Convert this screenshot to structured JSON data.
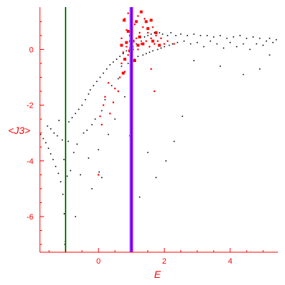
{
  "chart_data": {
    "type": "scatter",
    "title": "",
    "xlabel": "E",
    "ylabel": "<J3>",
    "xlim": [
      -1.78,
      5.45
    ],
    "ylim": [
      -7.28,
      1.52
    ],
    "x_ticks": [
      0,
      2,
      4
    ],
    "x_tick_labels": [
      "0",
      "2",
      "4"
    ],
    "y_ticks": [
      0,
      -2,
      -4,
      -6
    ],
    "y_tick_labels": [
      "0",
      "-2",
      "-4",
      "-6"
    ],
    "grid": false,
    "legend": "none",
    "colors": {
      "axis": "#ff0000",
      "black_points": "#000000",
      "red_points": "#ff0000",
      "green_line": "#007f00",
      "purple_line": "#9b30ff",
      "blue_line": "#0000ff"
    },
    "vertical_lines": [
      {
        "x": -1.0,
        "color": "#007f00"
      },
      {
        "x": 1.0,
        "color": "#9b30ff"
      }
    ],
    "series": [
      {
        "color": "#000000",
        "marker_size": 1.6,
        "points": [
          [
            -1.76,
            -3.05
          ],
          [
            -1.68,
            -3.2
          ],
          [
            -1.6,
            -3.35
          ],
          [
            -1.52,
            -3.55
          ],
          [
            -1.45,
            -3.75
          ],
          [
            -1.38,
            -3.95
          ],
          [
            -1.3,
            -4.2
          ],
          [
            -1.22,
            -4.45
          ],
          [
            -1.15,
            -4.75
          ],
          [
            -1.08,
            -5.2
          ],
          [
            -1.04,
            -5.9
          ],
          [
            -1.02,
            -7.0
          ],
          [
            -1.01,
            -6.9
          ],
          [
            -1.55,
            -2.75
          ],
          [
            -1.45,
            -2.85
          ],
          [
            -1.35,
            -3.0
          ],
          [
            -1.25,
            -3.1
          ],
          [
            -1.2,
            -2.55
          ],
          [
            -1.1,
            -3.25
          ],
          [
            -1.05,
            -3.95
          ],
          [
            -1.0,
            -4.1
          ],
          [
            -0.95,
            -4.55
          ],
          [
            -0.92,
            -3.3
          ],
          [
            -0.9,
            -2.6
          ],
          [
            -0.85,
            -4.35
          ],
          [
            -0.8,
            -2.45
          ],
          [
            -0.75,
            -3.7
          ],
          [
            -0.7,
            -2.3
          ],
          [
            -0.7,
            -6.0
          ],
          [
            -0.65,
            -3.4
          ],
          [
            -0.6,
            -2.15
          ],
          [
            -0.55,
            -4.5
          ],
          [
            -0.5,
            -2.0
          ],
          [
            -0.45,
            -3.0
          ],
          [
            -0.4,
            -1.8
          ],
          [
            -0.35,
            -2.9
          ],
          [
            -0.3,
            -1.6
          ],
          [
            -0.3,
            -3.9
          ],
          [
            -0.25,
            -1.45
          ],
          [
            -0.2,
            -2.7
          ],
          [
            -0.2,
            -5.0
          ],
          [
            -0.15,
            -1.3
          ],
          [
            -0.1,
            -2.5
          ],
          [
            -0.05,
            -1.15
          ],
          [
            0.0,
            -3.6
          ],
          [
            0.02,
            -4.4
          ],
          [
            0.05,
            -1.0
          ],
          [
            0.1,
            -2.2
          ],
          [
            0.1,
            -4.6
          ],
          [
            0.15,
            -0.85
          ],
          [
            0.2,
            -1.8
          ],
          [
            0.25,
            -0.7
          ],
          [
            0.3,
            -3.05
          ],
          [
            0.35,
            -0.55
          ],
          [
            0.4,
            -1.3
          ],
          [
            0.45,
            -0.45
          ],
          [
            0.5,
            -2.5
          ],
          [
            0.55,
            -0.35
          ],
          [
            0.6,
            -1.05
          ],
          [
            0.65,
            -0.25
          ],
          [
            0.7,
            -0.6
          ],
          [
            0.75,
            -0.15
          ],
          [
            0.8,
            -1.7
          ],
          [
            0.85,
            -0.05
          ],
          [
            0.9,
            -0.5
          ],
          [
            0.95,
            0.05
          ],
          [
            0.95,
            -3.1
          ],
          [
            1.0,
            -1.4
          ],
          [
            1.05,
            0.1
          ],
          [
            1.1,
            -0.35
          ],
          [
            1.15,
            0.2
          ],
          [
            1.2,
            -0.25
          ],
          [
            1.25,
            -5.3
          ],
          [
            1.3,
            0.3
          ],
          [
            1.35,
            -0.2
          ],
          [
            1.4,
            0.45
          ],
          [
            1.45,
            -0.15
          ],
          [
            1.5,
            0.5
          ],
          [
            1.5,
            -3.7
          ],
          [
            1.55,
            -0.1
          ],
          [
            1.6,
            0.55
          ],
          [
            1.65,
            -0.05
          ],
          [
            1.7,
            0.6
          ],
          [
            1.75,
            -4.6
          ],
          [
            1.8,
            0.0
          ],
          [
            1.85,
            0.6
          ],
          [
            1.9,
            0.05
          ],
          [
            1.95,
            0.55
          ],
          [
            2.0,
            0.1
          ],
          [
            2.05,
            -4.0
          ],
          [
            2.1,
            0.5
          ],
          [
            2.15,
            0.15
          ],
          [
            2.2,
            0.6
          ],
          [
            2.25,
            0.2
          ],
          [
            2.3,
            -3.3
          ],
          [
            2.35,
            0.5
          ],
          [
            2.4,
            0.25
          ],
          [
            2.5,
            0.55
          ],
          [
            2.55,
            -2.4
          ],
          [
            2.6,
            0.3
          ],
          [
            2.7,
            0.5
          ],
          [
            2.8,
            0.2
          ],
          [
            2.9,
            0.55
          ],
          [
            3.0,
            0.25
          ],
          [
            3.1,
            0.5
          ],
          [
            3.2,
            0.1
          ],
          [
            3.3,
            0.5
          ],
          [
            3.4,
            0.3
          ],
          [
            3.5,
            0.45
          ],
          [
            3.6,
            0.2
          ],
          [
            3.7,
            0.5
          ],
          [
            3.8,
            0.05
          ],
          [
            3.9,
            0.4
          ],
          [
            4.0,
            0.25
          ],
          [
            4.1,
            0.45
          ],
          [
            4.2,
            0.1
          ],
          [
            4.3,
            0.5
          ],
          [
            4.4,
            0.2
          ],
          [
            4.5,
            0.4
          ],
          [
            4.6,
            0.0
          ],
          [
            4.7,
            0.45
          ],
          [
            4.8,
            0.2
          ],
          [
            4.9,
            0.4
          ],
          [
            5.0,
            0.15
          ],
          [
            5.1,
            0.3
          ],
          [
            5.2,
            0.4
          ],
          [
            5.3,
            0.25
          ],
          [
            5.4,
            0.35
          ],
          [
            3.7,
            -0.6
          ],
          [
            4.4,
            -0.9
          ],
          [
            4.9,
            -0.7
          ],
          [
            2.9,
            -0.4
          ],
          [
            5.2,
            -0.2
          ]
        ]
      },
      {
        "color": "#ff0000",
        "marker_size": 2.2,
        "points": [
          [
            0.8,
            1.1
          ],
          [
            0.85,
            0.7
          ],
          [
            0.9,
            1.3
          ],
          [
            0.95,
            0.5
          ],
          [
            1.0,
            1.4
          ],
          [
            1.1,
            0.9
          ],
          [
            1.15,
            0.4
          ],
          [
            1.2,
            1.2
          ],
          [
            1.25,
            0.6
          ],
          [
            1.3,
            0.2
          ],
          [
            1.35,
            0.8
          ],
          [
            1.4,
            1.1
          ],
          [
            1.45,
            0.3
          ],
          [
            1.5,
            0.6
          ],
          [
            1.55,
            0.1
          ],
          [
            1.6,
            0.4
          ],
          [
            1.65,
            0.8
          ],
          [
            1.7,
            0.2
          ],
          [
            1.75,
            0.5
          ],
          [
            1.8,
            0.3
          ],
          [
            1.9,
            0.4
          ],
          [
            2.0,
            0.2
          ],
          [
            2.1,
            0.3
          ],
          [
            2.3,
            0.2
          ],
          [
            0.7,
            0.4
          ],
          [
            0.75,
            -0.1
          ],
          [
            0.7,
            -0.5
          ],
          [
            0.8,
            -0.8
          ],
          [
            0.65,
            -1.0
          ],
          [
            0.6,
            -1.5
          ],
          [
            0.5,
            -1.4
          ],
          [
            0.45,
            -1.9
          ],
          [
            0.35,
            -2.3
          ],
          [
            0.3,
            -1.2
          ],
          [
            0.2,
            -1.7
          ],
          [
            0.15,
            -2.0
          ],
          [
            0.1,
            -2.7
          ],
          [
            0.05,
            -2.4
          ],
          [
            0.0,
            -4.5
          ],
          [
            0.9,
            -0.2
          ],
          [
            0.85,
            0.1
          ],
          [
            1.0,
            -0.7
          ],
          [
            0.95,
            0.3
          ],
          [
            1.05,
            0.0
          ],
          [
            1.2,
            0.0
          ],
          [
            1.6,
            -0.7
          ],
          [
            1.7,
            -1.5
          ]
        ]
      },
      {
        "color": "#ff0000",
        "marker_size": 4.0,
        "points": [
          [
            0.78,
            1.05
          ],
          [
            0.9,
            0.65
          ],
          [
            1.0,
            1.15
          ],
          [
            1.15,
            1.0
          ],
          [
            1.3,
            1.35
          ],
          [
            1.45,
            1.0
          ],
          [
            1.5,
            0.75
          ],
          [
            1.6,
            1.05
          ],
          [
            1.25,
            0.45
          ],
          [
            1.35,
            0.2
          ],
          [
            0.85,
            0.25
          ],
          [
            1.05,
            0.3
          ],
          [
            1.2,
            0.15
          ],
          [
            0.95,
            -0.05
          ],
          [
            0.8,
            -0.35
          ],
          [
            0.75,
            -0.85
          ],
          [
            1.1,
            -0.4
          ],
          [
            1.65,
            0.3
          ],
          [
            1.75,
            0.6
          ],
          [
            1.85,
            0.15
          ],
          [
            0.7,
            0.15
          ]
        ]
      }
    ]
  }
}
